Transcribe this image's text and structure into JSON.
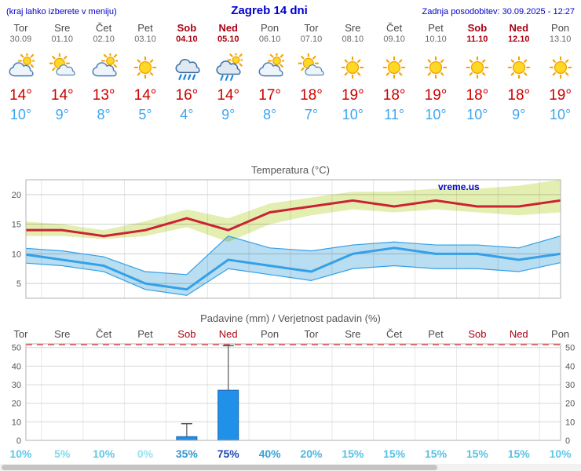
{
  "header": {
    "left_note": "(kraj lahko izberete v meniju)",
    "title": "Zagreb 14 dni",
    "last_update": "Zadnja posodobitev: 30.09.2025 - 12:27"
  },
  "colors": {
    "header_blue": "#0000cc",
    "weekday_text": "#4a4a4a",
    "weekend_text": "#aa0011",
    "tmax_text": "#cc0000",
    "tmin_text": "#3fa5f0",
    "temp_line_max": "#cc2233",
    "temp_band_max": "#dcea9e",
    "temp_line_min": "#33a0e8",
    "temp_band_min": "#a8d4ee",
    "bar_fill": "#2090e8",
    "bar_edge": "#1060b0",
    "dashed_limit": "#ee3333",
    "watermark": "#0000cc"
  },
  "days": [
    {
      "name": "Tor",
      "date": "30.09",
      "weekend": false,
      "icon": "mostly-cloudy",
      "tmax_label": "14°",
      "tmin_label": "10°",
      "precip_mm": 0,
      "precip_max_mm": 0,
      "prob": 10,
      "prob_label": "10%",
      "prob_color": "#5fc8e8"
    },
    {
      "name": "Sre",
      "date": "01.10",
      "weekend": false,
      "icon": "partly-sunny",
      "tmax_label": "14°",
      "tmin_label": "9°",
      "precip_mm": 0,
      "precip_max_mm": 0,
      "prob": 5,
      "prob_label": "5%",
      "prob_color": "#82d8f0"
    },
    {
      "name": "Čet",
      "date": "02.10",
      "weekend": false,
      "icon": "mostly-cloudy",
      "tmax_label": "13°",
      "tmin_label": "8°",
      "precip_mm": 0,
      "precip_max_mm": 0,
      "prob": 10,
      "prob_label": "10%",
      "prob_color": "#5fc8e8"
    },
    {
      "name": "Pet",
      "date": "03.10",
      "weekend": false,
      "icon": "sunny",
      "tmax_label": "14°",
      "tmin_label": "5°",
      "precip_mm": 0,
      "precip_max_mm": 0,
      "prob": 0,
      "prob_label": "0%",
      "prob_color": "#98e2f6"
    },
    {
      "name": "Sob",
      "date": "04.10",
      "weekend": true,
      "icon": "rain",
      "tmax_label": "16°",
      "tmin_label": "4°",
      "precip_mm": 2,
      "precip_max_mm": 9,
      "prob": 35,
      "prob_label": "35%",
      "prob_color": "#3596d0"
    },
    {
      "name": "Ned",
      "date": "05.10",
      "weekend": true,
      "icon": "rain-sun",
      "tmax_label": "14°",
      "tmin_label": "9°",
      "precip_mm": 27,
      "precip_max_mm": 51,
      "prob": 75,
      "prob_label": "75%",
      "prob_color": "#1b49b8"
    },
    {
      "name": "Pon",
      "date": "06.10",
      "weekend": false,
      "icon": "mostly-cloudy",
      "tmax_label": "17°",
      "tmin_label": "8°",
      "precip_mm": 0,
      "precip_max_mm": 0,
      "prob": 40,
      "prob_label": "40%",
      "prob_color": "#3aa0d8"
    },
    {
      "name": "Tor",
      "date": "07.10",
      "weekend": false,
      "icon": "partly-sunny",
      "tmax_label": "18°",
      "tmin_label": "7°",
      "precip_mm": 0,
      "precip_max_mm": 0,
      "prob": 20,
      "prob_label": "20%",
      "prob_color": "#4db8e0"
    },
    {
      "name": "Sre",
      "date": "08.10",
      "weekend": false,
      "icon": "sunny",
      "tmax_label": "19°",
      "tmin_label": "10°",
      "precip_mm": 0,
      "precip_max_mm": 0,
      "prob": 15,
      "prob_label": "15%",
      "prob_color": "#58c2e4"
    },
    {
      "name": "Čet",
      "date": "09.10",
      "weekend": false,
      "icon": "sunny",
      "tmax_label": "18°",
      "tmin_label": "11°",
      "precip_mm": 0,
      "precip_max_mm": 0,
      "prob": 15,
      "prob_label": "15%",
      "prob_color": "#58c2e4"
    },
    {
      "name": "Pet",
      "date": "10.10",
      "weekend": false,
      "icon": "sunny",
      "tmax_label": "19°",
      "tmin_label": "10°",
      "precip_mm": 0,
      "precip_max_mm": 0,
      "prob": 15,
      "prob_label": "15%",
      "prob_color": "#58c2e4"
    },
    {
      "name": "Sob",
      "date": "11.10",
      "weekend": true,
      "icon": "sunny",
      "tmax_label": "18°",
      "tmin_label": "10°",
      "precip_mm": 0,
      "precip_max_mm": 0,
      "prob": 15,
      "prob_label": "15%",
      "prob_color": "#58c2e4"
    },
    {
      "name": "Ned",
      "date": "12.10",
      "weekend": true,
      "icon": "sunny",
      "tmax_label": "18°",
      "tmin_label": "9°",
      "precip_mm": 0,
      "precip_max_mm": 0,
      "prob": 15,
      "prob_label": "15%",
      "prob_color": "#58c2e4"
    },
    {
      "name": "Pon",
      "date": "13.10",
      "weekend": false,
      "icon": "sunny",
      "tmax_label": "19°",
      "tmin_label": "10°",
      "precip_mm": 0,
      "precip_max_mm": 0,
      "prob": 10,
      "prob_label": "10%",
      "prob_color": "#5fc8e8"
    }
  ],
  "temp_chart": {
    "title": "Temperatura (°C)",
    "watermark": "vreme.us"
  },
  "precip_chart": {
    "title": "Padavine (mm) / Verjetnost padavin (%)"
  },
  "chart_data": [
    {
      "type": "line",
      "title": "Temperatura (°C)",
      "x": [
        "Tor 30.09",
        "Sre 01.10",
        "Čet 02.10",
        "Pet 03.10",
        "Sob 04.10",
        "Ned 05.10",
        "Pon 06.10",
        "Tor 07.10",
        "Sre 08.10",
        "Čet 09.10",
        "Pet 10.10",
        "Sob 11.10",
        "Ned 12.10",
        "Pon 13.10"
      ],
      "series": [
        {
          "name": "t_max",
          "values": [
            14,
            14,
            13,
            14,
            16,
            14,
            17,
            18,
            19,
            18,
            19,
            18,
            18,
            19
          ]
        },
        {
          "name": "t_min",
          "values": [
            10,
            9,
            8,
            5,
            4,
            9,
            8,
            7,
            10,
            11,
            10,
            10,
            9,
            10
          ]
        },
        {
          "name": "t_max_range_upper",
          "values": [
            15.5,
            15,
            14,
            15.5,
            17.5,
            16,
            18.5,
            19.5,
            20.5,
            20.5,
            21,
            21,
            21.5,
            22.5
          ]
        },
        {
          "name": "t_max_range_lower",
          "values": [
            13,
            13,
            12.5,
            13,
            14.5,
            12,
            15,
            16.5,
            17.5,
            17,
            17.5,
            17,
            16.5,
            17
          ]
        },
        {
          "name": "t_min_range_upper",
          "values": [
            11,
            10.5,
            9.5,
            7,
            6.5,
            13,
            11,
            10.5,
            11.5,
            12,
            11.5,
            11.5,
            11,
            13
          ]
        },
        {
          "name": "t_min_range_lower",
          "values": [
            8.5,
            8,
            7,
            4,
            3,
            7.5,
            6.5,
            5.5,
            7.5,
            8,
            7.5,
            7.5,
            7,
            8.5
          ]
        }
      ],
      "ylim": [
        2.5,
        22.5
      ],
      "yticks": [
        5,
        10,
        15,
        20
      ],
      "grid": true,
      "legend": "none"
    },
    {
      "type": "bar",
      "title": "Padavine (mm) / Verjetnost padavin (%)",
      "categories": [
        "Tor",
        "Sre",
        "Čet",
        "Pet",
        "Sob",
        "Ned",
        "Pon",
        "Tor",
        "Sre",
        "Čet",
        "Pet",
        "Sob",
        "Ned",
        "Pon"
      ],
      "series": [
        {
          "name": "padavine_mm",
          "values": [
            0,
            0,
            0,
            0,
            2,
            27,
            0,
            0,
            0,
            0,
            0,
            0,
            0,
            0
          ]
        },
        {
          "name": "max_padavine_mm",
          "values": [
            0,
            0,
            0,
            0,
            9,
            51,
            0,
            0,
            0,
            0,
            0,
            0,
            0,
            0
          ]
        },
        {
          "name": "verjetnost_padavin_pct",
          "values": [
            10,
            5,
            10,
            0,
            35,
            75,
            40,
            20,
            15,
            15,
            15,
            15,
            15,
            10
          ]
        }
      ],
      "ylim": [
        0,
        52
      ],
      "yticks": [
        0,
        10,
        20,
        30,
        40,
        50
      ],
      "grid": true,
      "legend": "none"
    }
  ]
}
